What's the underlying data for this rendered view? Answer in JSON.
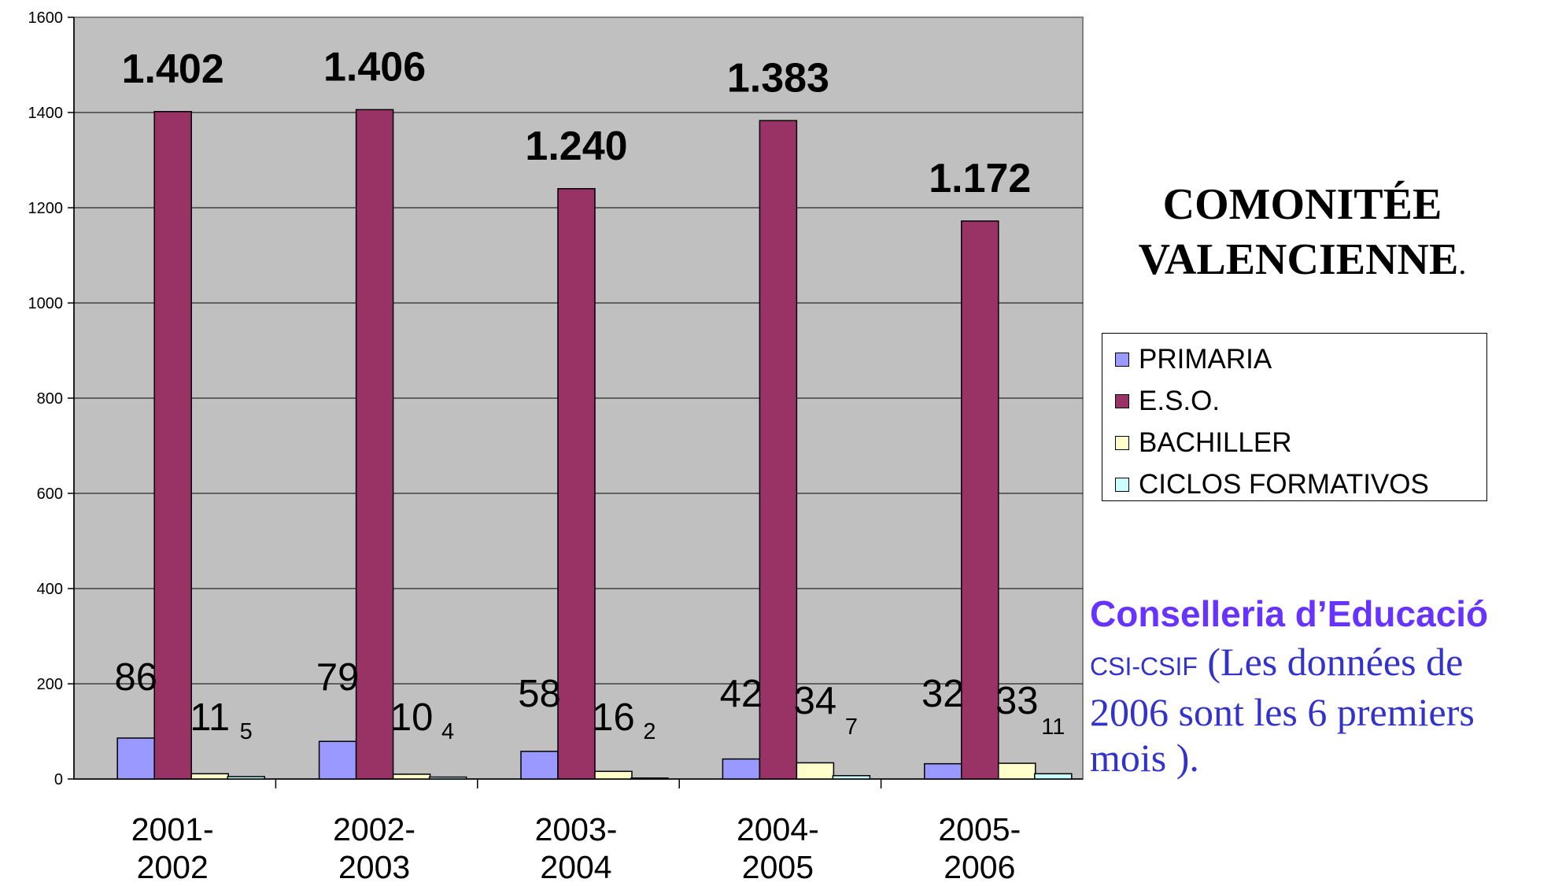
{
  "chart_data": {
    "type": "bar",
    "categories": [
      [
        "2001-",
        "2002"
      ],
      [
        "2002-",
        "2003"
      ],
      [
        "2003-",
        "2004"
      ],
      [
        "2004-",
        "2005"
      ],
      [
        "2005-",
        "2006"
      ]
    ],
    "series": [
      {
        "name": "PRIMARIA",
        "color": "#9999ff",
        "values": [
          86,
          79,
          58,
          42,
          32
        ]
      },
      {
        "name": "E.S.O.",
        "color": "#993366",
        "values": [
          1402,
          1406,
          1240,
          1383,
          1172
        ]
      },
      {
        "name": "BACHILLER",
        "color": "#ffffcc",
        "values": [
          11,
          10,
          16,
          34,
          33
        ]
      },
      {
        "name": "CICLOS FORMATIVOS",
        "color": "#ccffff",
        "values": [
          5,
          4,
          2,
          7,
          11
        ]
      }
    ],
    "data_labels": {
      "eso": [
        "1.402",
        "1.406",
        "1.240",
        "1.383",
        "1.172"
      ],
      "primaria": [
        "86",
        "79",
        "58",
        "42",
        "32"
      ],
      "bachiller": [
        "11",
        "10",
        "16",
        "34",
        "33"
      ],
      "ciclos": [
        "5",
        "4",
        "2",
        "7",
        "11"
      ]
    },
    "ylim": [
      0,
      1600
    ],
    "yticks": [
      0,
      200,
      400,
      600,
      800,
      1000,
      1200,
      1400,
      1600
    ],
    "grid": true,
    "plot_background": "#c0c0c0",
    "legend_position": "right"
  },
  "side_title": {
    "line1": "COMONITÉE",
    "line2": "VALENCIENNE",
    "punct": "."
  },
  "source": {
    "line1": "Conselleria d’Educació",
    "org": "CSI-CSIF",
    "note": " (Les données de 2006 sont les 6 premiers mois )."
  }
}
